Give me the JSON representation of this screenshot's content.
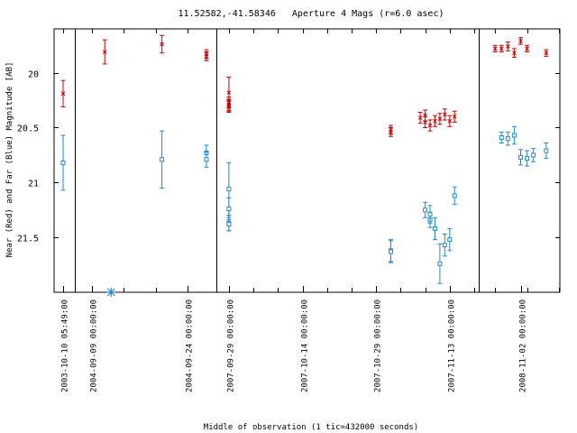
{
  "chart_data": {
    "type": "scatter",
    "title": "11.52582,-41.58346   Aperture 4 Mags (r=6.0 asec)",
    "xlabel": "Middle of observation (1 tic=432000 seconds)",
    "ylabel": "Near (Red) and Far (Blue) Magnitude [AB]",
    "ylim": [
      22.0,
      19.6
    ],
    "y_reversed": true,
    "y_ticks": [
      20,
      20.5,
      21,
      21.5
    ],
    "y_tick_labels": [
      "20",
      "20.5",
      "21",
      "21.5"
    ],
    "x_tick_labels": [
      "2003-10-10 05:49:00",
      "2004-09-09 00:00:00",
      "2004-09-24 00:00:00",
      "2007-09-29 00:00:00",
      "2007-10-14 00:00:00",
      "2007-10-29 00:00:00",
      "2007-11-13 00:00:00",
      "2008-11-02 00:00:00"
    ],
    "season_dividers": [
      "2004-08",
      "2007-09",
      "2008-10"
    ],
    "series": [
      {
        "color": "#cc0000",
        "marker": "x",
        "points": [
          {
            "x": "2003-10-10",
            "y": 20.19,
            "err": 0.12
          },
          {
            "x": "2004-09-11",
            "y": 19.81,
            "err": 0.11
          },
          {
            "x": "2004-09-20",
            "y": 19.74,
            "err": 0.08
          },
          {
            "x": "2004-09-27",
            "y": 19.85,
            "err": 0.04
          },
          {
            "x": "2004-09-27",
            "y": 19.83,
            "err": 0.04
          },
          {
            "x": "2007-09-29",
            "y": 20.18,
            "err": 0.14
          },
          {
            "x": "2007-09-29",
            "y": 20.29,
            "err": 0.05
          },
          {
            "x": "2007-09-29",
            "y": 20.31,
            "err": 0.05
          },
          {
            "x": "2007-09-29",
            "y": 20.27,
            "err": 0.05
          },
          {
            "x": "2007-09-29",
            "y": 20.3,
            "err": 0.05
          },
          {
            "x": "2007-11-01",
            "y": 20.52,
            "err": 0.04
          },
          {
            "x": "2007-11-01",
            "y": 20.54,
            "err": 0.04
          },
          {
            "x": "2007-11-07",
            "y": 20.41,
            "err": 0.05
          },
          {
            "x": "2007-11-08",
            "y": 20.39,
            "err": 0.05
          },
          {
            "x": "2007-11-08",
            "y": 20.45,
            "err": 0.05
          },
          {
            "x": "2007-11-09",
            "y": 20.48,
            "err": 0.05
          },
          {
            "x": "2007-11-10",
            "y": 20.44,
            "err": 0.05
          },
          {
            "x": "2007-11-11",
            "y": 20.42,
            "err": 0.05
          },
          {
            "x": "2007-11-12",
            "y": 20.38,
            "err": 0.05
          },
          {
            "x": "2007-11-13",
            "y": 20.44,
            "err": 0.05
          },
          {
            "x": "2007-11-14",
            "y": 20.4,
            "err": 0.05
          },
          {
            "x": "2008-10-29",
            "y": 19.78,
            "err": 0.03
          },
          {
            "x": "2008-10-30",
            "y": 19.78,
            "err": 0.03
          },
          {
            "x": "2008-10-31",
            "y": 19.76,
            "err": 0.04
          },
          {
            "x": "2008-11-01",
            "y": 19.82,
            "err": 0.04
          },
          {
            "x": "2008-11-02",
            "y": 19.71,
            "err": 0.03
          },
          {
            "x": "2008-11-03",
            "y": 19.78,
            "err": 0.03
          },
          {
            "x": "2008-11-06",
            "y": 19.82,
            "err": 0.03
          }
        ]
      },
      {
        "color": "#1e8ad6",
        "marker": "square",
        "points": [
          {
            "x": "2003-10-10",
            "y": 20.82,
            "err": 0.25
          },
          {
            "x": "2004-09-20",
            "y": 20.79,
            "err": 0.26
          },
          {
            "x": "2004-09-27",
            "y": 20.73,
            "err": 0.07
          },
          {
            "x": "2004-09-27",
            "y": 20.79,
            "err": 0.07
          },
          {
            "x": "2007-09-29",
            "y": 21.06,
            "err": 0.24
          },
          {
            "x": "2007-09-29",
            "y": 21.24,
            "err": 0.1
          },
          {
            "x": "2007-09-29",
            "y": 21.37,
            "err": 0.07
          },
          {
            "x": "2007-09-29",
            "y": 21.38,
            "err": 0.06
          },
          {
            "x": "2007-11-01",
            "y": 21.62,
            "err": 0.1
          },
          {
            "x": "2007-11-01",
            "y": 21.63,
            "err": 0.1
          },
          {
            "x": "2007-11-08",
            "y": 21.25,
            "err": 0.07
          },
          {
            "x": "2007-11-09",
            "y": 21.34,
            "err": 0.07
          },
          {
            "x": "2007-11-09",
            "y": 21.29,
            "err": 0.08
          },
          {
            "x": "2007-11-10",
            "y": 21.42,
            "err": 0.1
          },
          {
            "x": "2007-11-11",
            "y": 21.74,
            "err": 0.18
          },
          {
            "x": "2007-11-12",
            "y": 21.57,
            "err": 0.1
          },
          {
            "x": "2007-11-13",
            "y": 21.52,
            "err": 0.1
          },
          {
            "x": "2007-11-14",
            "y": 21.12,
            "err": 0.08
          },
          {
            "x": "2008-10-30",
            "y": 20.59,
            "err": 0.05
          },
          {
            "x": "2008-10-31",
            "y": 20.6,
            "err": 0.06
          },
          {
            "x": "2008-11-01",
            "y": 20.57,
            "err": 0.08
          },
          {
            "x": "2008-11-02",
            "y": 20.77,
            "err": 0.07
          },
          {
            "x": "2008-11-03",
            "y": 20.78,
            "err": 0.07
          },
          {
            "x": "2008-11-04",
            "y": 20.75,
            "err": 0.06
          },
          {
            "x": "2008-11-06",
            "y": 20.71,
            "err": 0.07
          }
        ]
      }
    ],
    "special_points": [
      {
        "x": "2004-09-12",
        "y": 22.0,
        "marker": "asterisk",
        "color": "#1e8ad6"
      }
    ]
  }
}
